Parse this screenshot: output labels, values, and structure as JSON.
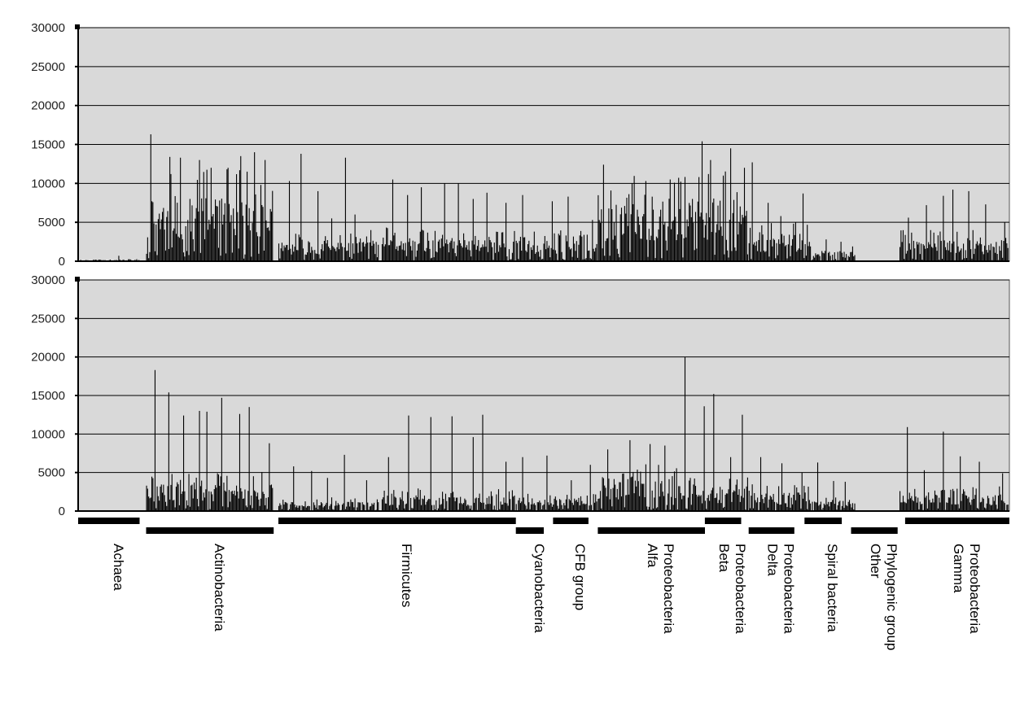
{
  "chart_data": [
    {
      "type": "bar",
      "ylim": [
        0,
        30000
      ],
      "yticks": [
        0,
        5000,
        10000,
        15000,
        20000,
        25000,
        30000
      ],
      "grid": true,
      "plot_background": "#d9d9d9",
      "bar_color": "#000000",
      "seed": 11,
      "segments": [
        {
          "group": "Achaea",
          "from": 0,
          "to": 6.6,
          "base": 150,
          "peaks": [
            700
          ]
        },
        {
          "group": "Actinobacteria",
          "from": 7.3,
          "to": 21.0,
          "base": 6000,
          "peaks": [
            16300,
            13400,
            13300,
            13000,
            12000,
            12000,
            13500,
            14000,
            13000
          ]
        },
        {
          "group": "Firmicutes (part 1)",
          "from": 21.5,
          "to": 32.4,
          "base": 1800,
          "peaks": [
            10300,
            13800,
            9000,
            5500,
            13300,
            6000,
            4000
          ]
        },
        {
          "group": "Firmicutes (part 2)",
          "from": 32.6,
          "to": 47.0,
          "base": 2200,
          "peaks": [
            10500,
            8500,
            9500,
            10000,
            10000,
            8000,
            8800,
            7500
          ]
        },
        {
          "group": "Cyanobacteria / CFB group",
          "from": 47.0,
          "to": 55.8,
          "base": 2000,
          "peaks": [
            8500,
            7700,
            8300,
            5300
          ]
        },
        {
          "group": "Alfa Proteobacteria",
          "from": 55.8,
          "to": 66.5,
          "base": 5500,
          "peaks": [
            12400,
            10000,
            10300,
            10500,
            8000
          ]
        },
        {
          "group": "Beta Proteobacteria",
          "from": 66.5,
          "to": 72.0,
          "base": 6000,
          "peaks": [
            15400,
            13000,
            11000,
            14500,
            12000
          ]
        },
        {
          "group": "Delta Proteobacteria",
          "from": 72.0,
          "to": 78.8,
          "base": 2600,
          "peaks": [
            12700,
            7500,
            5800,
            5000,
            8700
          ]
        },
        {
          "group": "Spiral bacteria",
          "from": 78.8,
          "to": 83.5,
          "base": 1000,
          "peaks": [
            2800,
            2500
          ]
        },
        {
          "group": "Other Phylogenic group",
          "from": 83.5,
          "to": 88.2,
          "base": 0,
          "peaks": []
        },
        {
          "group": "Gamma Proteobacteria",
          "from": 88.2,
          "to": 100,
          "base": 2000,
          "peaks": [
            5600,
            7200,
            8400,
            9200,
            9000,
            7300,
            5000
          ]
        }
      ]
    },
    {
      "type": "bar",
      "ylim": [
        0,
        30000
      ],
      "yticks": [
        0,
        5000,
        10000,
        15000,
        20000,
        25000,
        30000
      ],
      "grid": true,
      "plot_background": "#d9d9d9",
      "bar_color": "#000000",
      "seed": 29,
      "segments": [
        {
          "group": "Achaea",
          "from": 0,
          "to": 6.6,
          "base": 0,
          "peaks": []
        },
        {
          "group": "Actinobacteria",
          "from": 7.3,
          "to": 21.0,
          "base": 2600,
          "peaks": [
            18300,
            15400,
            12400,
            13000,
            12900,
            14700,
            12600,
            13500,
            8800
          ]
        },
        {
          "group": "Firmicutes (part 1)",
          "from": 21.5,
          "to": 32.4,
          "base": 900,
          "peaks": [
            5800,
            5200,
            4300,
            7300,
            4000
          ]
        },
        {
          "group": "Firmicutes (part 2)",
          "from": 32.6,
          "to": 47.0,
          "base": 1500,
          "peaks": [
            7000,
            12400,
            12200,
            12300,
            9600,
            12500,
            6400
          ]
        },
        {
          "group": "Cyanobacteria / CFB group",
          "from": 47.0,
          "to": 55.8,
          "base": 1200,
          "peaks": [
            7000,
            7200,
            4000,
            6000
          ]
        },
        {
          "group": "Alfa Proteobacteria",
          "from": 55.8,
          "to": 66.5,
          "base": 3200,
          "peaks": [
            8000,
            9200,
            8700,
            8500,
            20000
          ]
        },
        {
          "group": "Beta Proteobacteria",
          "from": 66.5,
          "to": 72.0,
          "base": 2200,
          "peaks": [
            13600,
            15200,
            7000,
            12500
          ]
        },
        {
          "group": "Delta Proteobacteria",
          "from": 72.0,
          "to": 78.8,
          "base": 1800,
          "peaks": [
            7000,
            6200,
            5000
          ]
        },
        {
          "group": "Spiral bacteria",
          "from": 78.8,
          "to": 83.5,
          "base": 900,
          "peaks": [
            6300,
            3900,
            3800
          ]
        },
        {
          "group": "Other Phylogenic group",
          "from": 83.5,
          "to": 88.2,
          "base": 0,
          "peaks": []
        },
        {
          "group": "Gamma Proteobacteria",
          "from": 88.2,
          "to": 100,
          "base": 1600,
          "peaks": [
            10900,
            5300,
            10300,
            7100,
            6400,
            4900
          ]
        }
      ]
    }
  ],
  "groups": [
    {
      "lines": [
        "Achaea"
      ],
      "from": 0,
      "to": 6.6
    },
    {
      "lines": [
        "Actinobacteria"
      ],
      "from": 7.3,
      "to": 21.0
    },
    {
      "lines": [
        "Firmicutes"
      ],
      "from": 21.5,
      "to": 47.0
    },
    {
      "lines": [
        "Cyanobacteria"
      ],
      "from": 47.0,
      "to": 50.0
    },
    {
      "lines": [
        "CFB  group"
      ],
      "from": 51.0,
      "to": 54.8
    },
    {
      "lines": [
        "Alfa",
        "Proteobacteria"
      ],
      "from": 55.8,
      "to": 67.3
    },
    {
      "lines": [
        "Beta",
        "Proteobacteria"
      ],
      "from": 67.3,
      "to": 71.2
    },
    {
      "lines": [
        "Delta",
        "Proteobacteria"
      ],
      "from": 72.0,
      "to": 76.9
    },
    {
      "lines": [
        "Spiral  bacteria"
      ],
      "from": 78.0,
      "to": 82.0
    },
    {
      "lines": [
        "Other",
        "Phylogenic  group"
      ],
      "from": 83.0,
      "to": 88.0
    },
    {
      "lines": [
        "Gamma",
        "Proteobacteria"
      ],
      "from": 88.8,
      "to": 100
    }
  ]
}
